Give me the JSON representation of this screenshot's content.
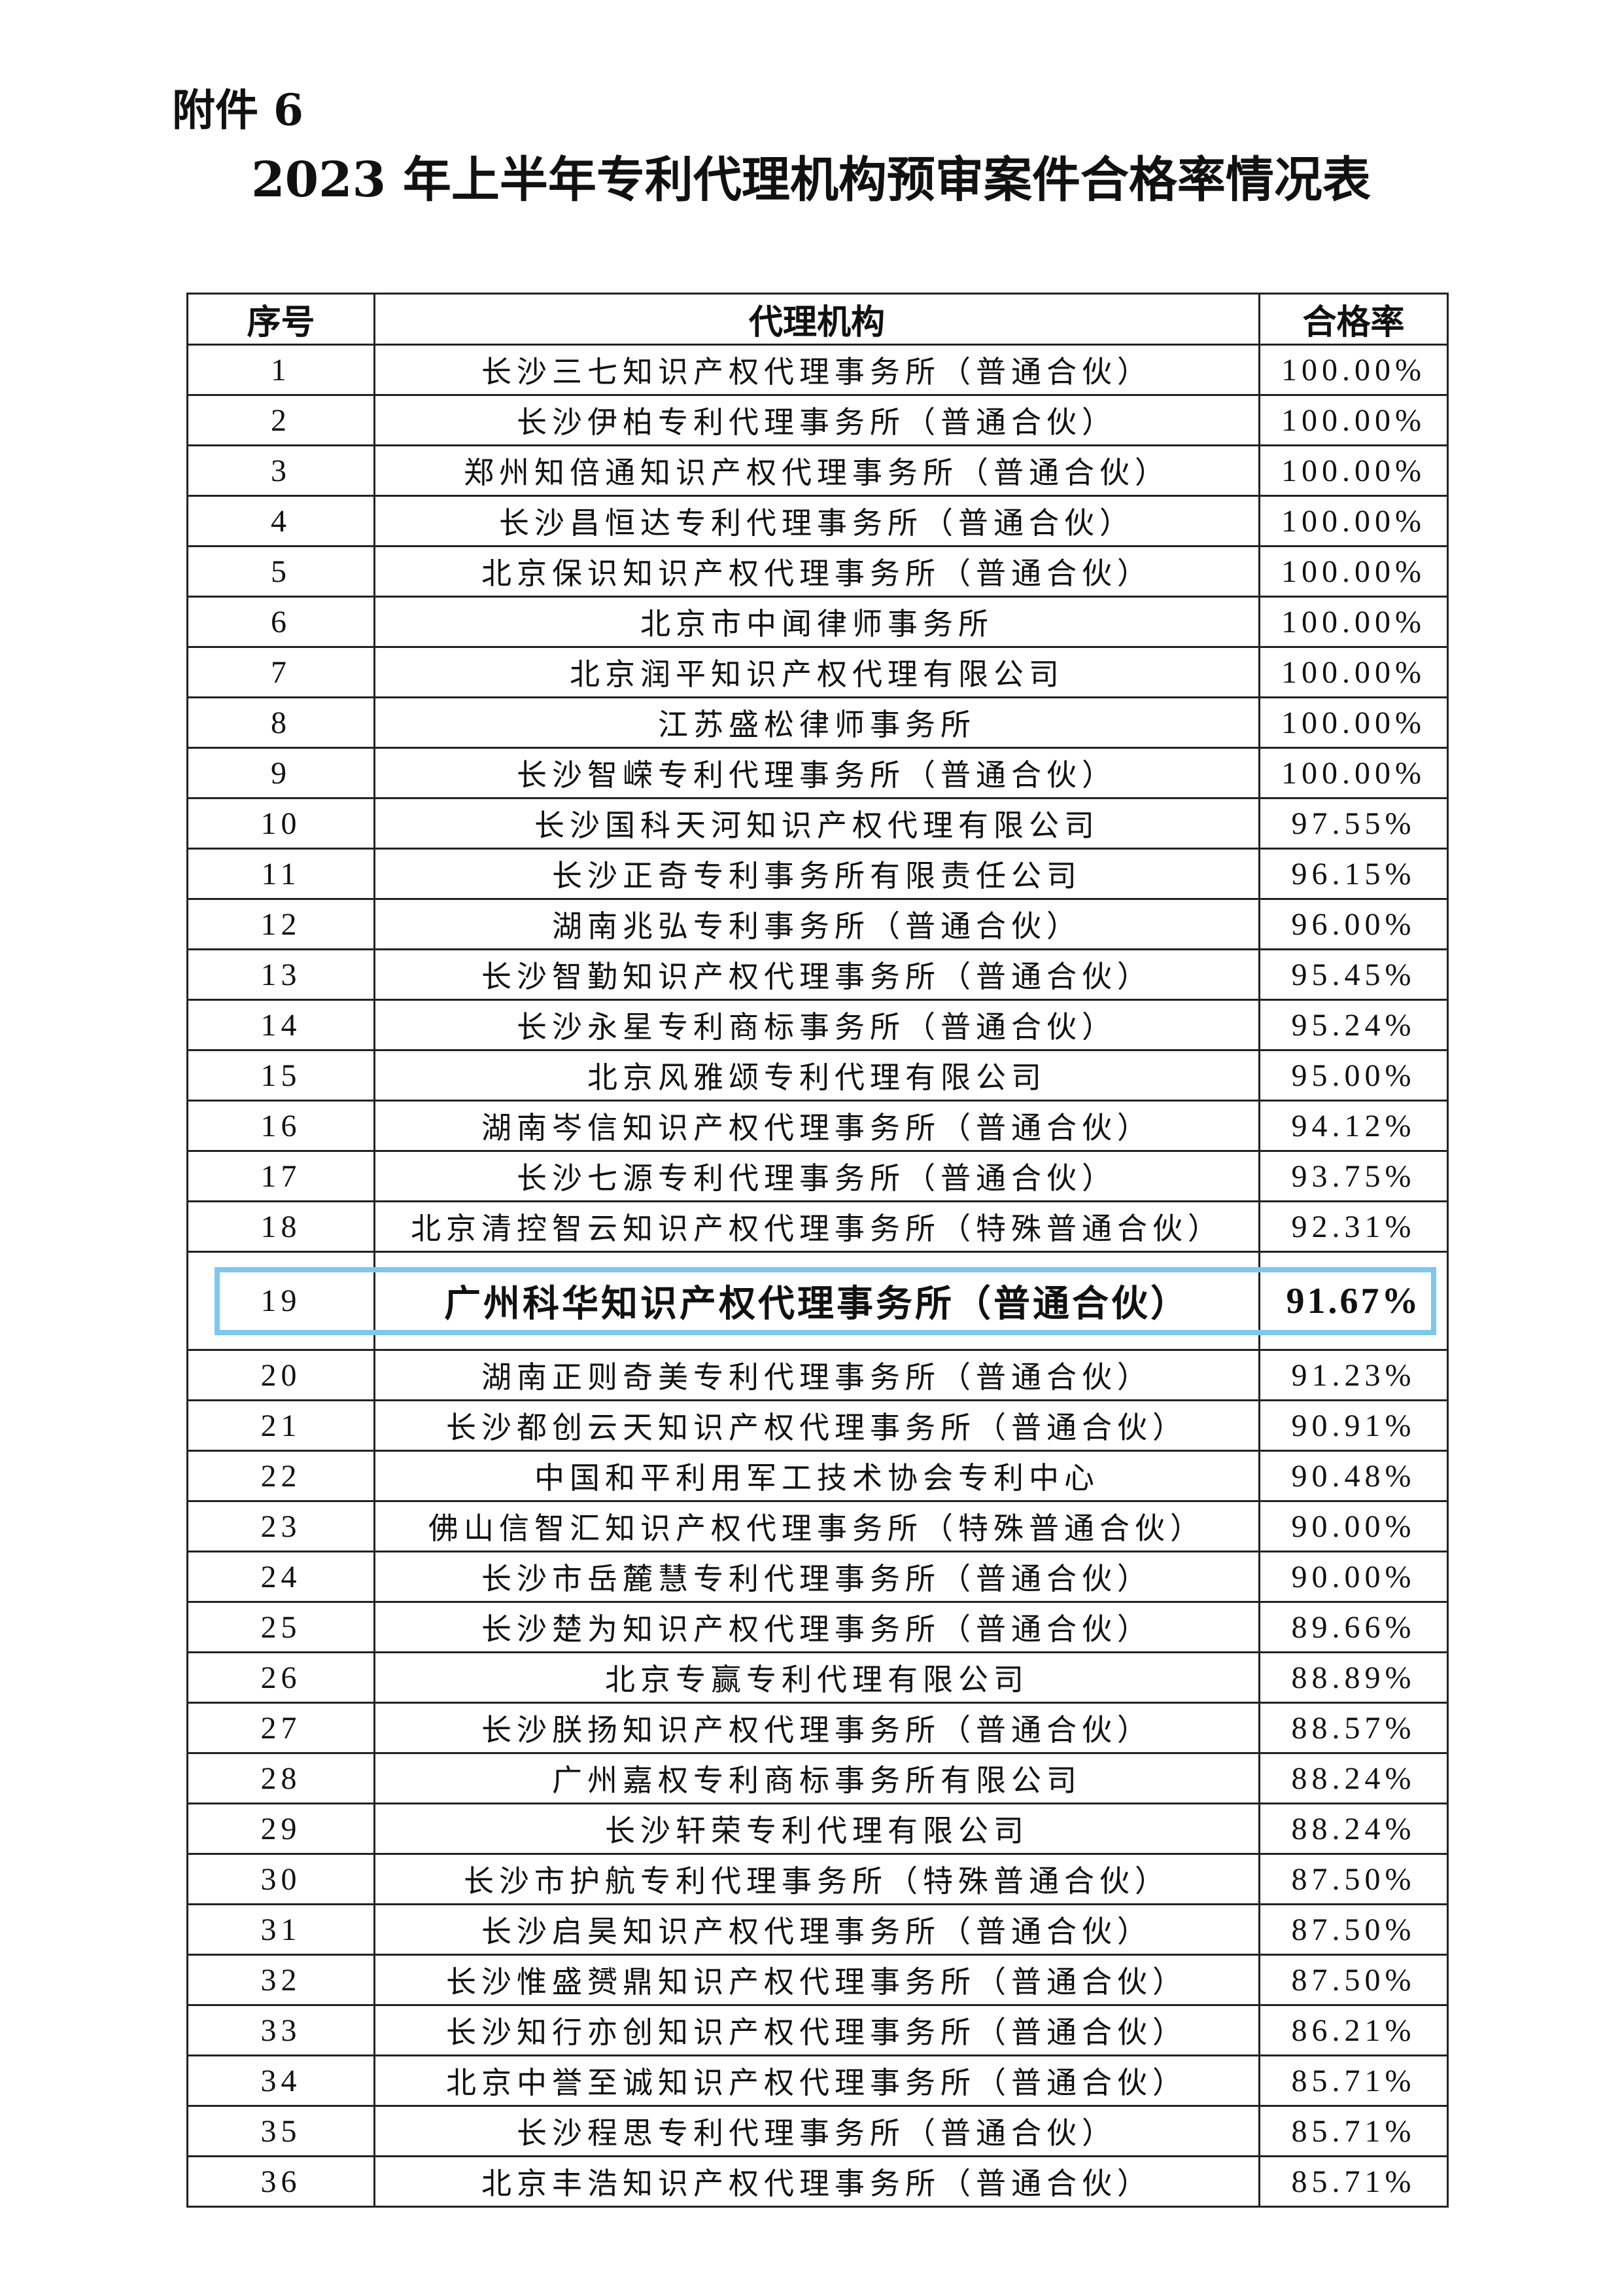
{
  "attachment_label": "附件 6",
  "title": "2023 年上半年专利代理机构预审案件合格率情况表",
  "highlight_color": "#7cc8ef",
  "highlighted_row": "19",
  "table": {
    "headers": [
      "序号",
      "代理机构",
      "合格率"
    ],
    "rows": [
      [
        "1",
        "长沙三七知识产权代理事务所（普通合伙）",
        "100.00%"
      ],
      [
        "2",
        "长沙伊柏专利代理事务所（普通合伙）",
        "100.00%"
      ],
      [
        "3",
        "郑州知倍通知识产权代理事务所（普通合伙）",
        "100.00%"
      ],
      [
        "4",
        "长沙昌恒达专利代理事务所（普通合伙）",
        "100.00%"
      ],
      [
        "5",
        "北京保识知识产权代理事务所（普通合伙）",
        "100.00%"
      ],
      [
        "6",
        "北京市中闻律师事务所",
        "100.00%"
      ],
      [
        "7",
        "北京润平知识产权代理有限公司",
        "100.00%"
      ],
      [
        "8",
        "江苏盛松律师事务所",
        "100.00%"
      ],
      [
        "9",
        "长沙智嵘专利代理事务所（普通合伙）",
        "100.00%"
      ],
      [
        "10",
        "长沙国科天河知识产权代理有限公司",
        "97.55%"
      ],
      [
        "11",
        "长沙正奇专利事务所有限责任公司",
        "96.15%"
      ],
      [
        "12",
        "湖南兆弘专利事务所（普通合伙）",
        "96.00%"
      ],
      [
        "13",
        "长沙智勤知识产权代理事务所（普通合伙）",
        "95.45%"
      ],
      [
        "14",
        "长沙永星专利商标事务所（普通合伙）",
        "95.24%"
      ],
      [
        "15",
        "北京风雅颂专利代理有限公司",
        "95.00%"
      ],
      [
        "16",
        "湖南岑信知识产权代理事务所（普通合伙）",
        "94.12%"
      ],
      [
        "17",
        "长沙七源专利代理事务所（普通合伙）",
        "93.75%"
      ],
      [
        "18",
        "北京清控智云知识产权代理事务所（特殊普通合伙）",
        "92.31%"
      ],
      [
        "19",
        "广州科华知识产权代理事务所（普通合伙）",
        "91.67%"
      ],
      [
        "20",
        "湖南正则奇美专利代理事务所（普通合伙）",
        "91.23%"
      ],
      [
        "21",
        "长沙都创云天知识产权代理事务所（普通合伙）",
        "90.91%"
      ],
      [
        "22",
        "中国和平利用军工技术协会专利中心",
        "90.48%"
      ],
      [
        "23",
        "佛山信智汇知识产权代理事务所（特殊普通合伙）",
        "90.00%"
      ],
      [
        "24",
        "长沙市岳麓慧专利代理事务所（普通合伙）",
        "90.00%"
      ],
      [
        "25",
        "长沙楚为知识产权代理事务所（普通合伙）",
        "89.66%"
      ],
      [
        "26",
        "北京专赢专利代理有限公司",
        "88.89%"
      ],
      [
        "27",
        "长沙朕扬知识产权代理事务所（普通合伙）",
        "88.57%"
      ],
      [
        "28",
        "广州嘉权专利商标事务所有限公司",
        "88.24%"
      ],
      [
        "29",
        "长沙轩荣专利代理有限公司",
        "88.24%"
      ],
      [
        "30",
        "长沙市护航专利代理事务所（特殊普通合伙）",
        "87.50%"
      ],
      [
        "31",
        "长沙启昊知识产权代理事务所（普通合伙）",
        "87.50%"
      ],
      [
        "32",
        "长沙惟盛赟鼎知识产权代理事务所（普通合伙）",
        "87.50%"
      ],
      [
        "33",
        "长沙知行亦创知识产权代理事务所（普通合伙）",
        "86.21%"
      ],
      [
        "34",
        "北京中誉至诚知识产权代理事务所（普通合伙）",
        "85.71%"
      ],
      [
        "35",
        "长沙程思专利代理事务所（普通合伙）",
        "85.71%"
      ],
      [
        "36",
        "北京丰浩知识产权代理事务所（普通合伙）",
        "85.71%"
      ]
    ]
  }
}
